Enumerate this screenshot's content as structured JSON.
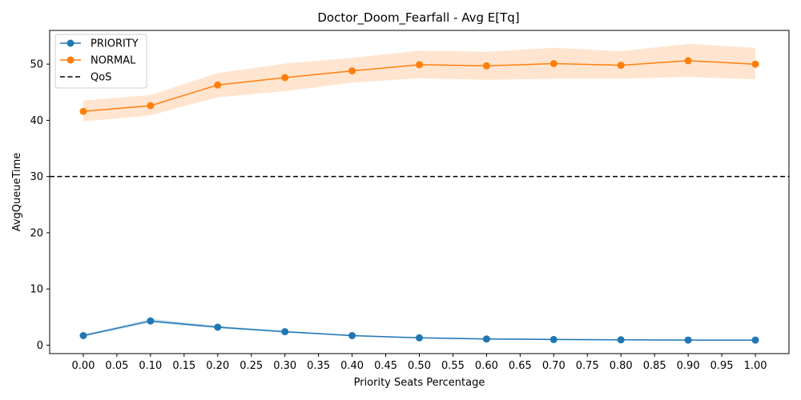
{
  "chart_data": {
    "type": "line",
    "title": "Doctor_Doom_Fearfall - Avg E[Tq]",
    "xlabel": "Priority Seats Percentage",
    "ylabel": "AvgQueueTime",
    "xlim": [
      -0.05,
      1.05
    ],
    "ylim": [
      -1.5,
      56
    ],
    "x": [
      0.0,
      0.1,
      0.2,
      0.3,
      0.4,
      0.5,
      0.6,
      0.7,
      0.8,
      0.9,
      1.0
    ],
    "x_ticks": [
      0.0,
      0.05,
      0.1,
      0.15,
      0.2,
      0.25,
      0.3,
      0.35,
      0.4,
      0.45,
      0.5,
      0.55,
      0.6,
      0.65,
      0.7,
      0.75,
      0.8,
      0.85,
      0.9,
      0.95,
      1.0
    ],
    "x_tick_labels": [
      "0.00",
      "0.05",
      "0.10",
      "0.15",
      "0.20",
      "0.25",
      "0.30",
      "0.35",
      "0.40",
      "0.45",
      "0.50",
      "0.55",
      "0.60",
      "0.65",
      "0.70",
      "0.75",
      "0.80",
      "0.85",
      "0.90",
      "0.95",
      "1.00"
    ],
    "y_ticks": [
      0,
      10,
      20,
      30,
      40,
      50
    ],
    "y_tick_labels": [
      "0",
      "10",
      "20",
      "30",
      "40",
      "50"
    ],
    "series": [
      {
        "name": "PRIORITY",
        "color": "#1f77b4",
        "values": [
          1.7,
          4.3,
          3.2,
          2.4,
          1.7,
          1.3,
          1.1,
          1.0,
          0.95,
          0.9,
          0.9
        ],
        "lower": [
          1.5,
          4.0,
          3.0,
          2.25,
          1.6,
          1.2,
          1.0,
          0.9,
          0.85,
          0.8,
          0.8
        ],
        "upper": [
          1.9,
          4.7,
          3.45,
          2.55,
          1.85,
          1.45,
          1.25,
          1.15,
          1.05,
          1.0,
          1.0
        ]
      },
      {
        "name": "NORMAL",
        "color": "#ff7f0e",
        "values": [
          41.6,
          42.6,
          46.3,
          47.6,
          48.8,
          49.9,
          49.7,
          50.1,
          49.8,
          50.6,
          50.0
        ],
        "lower": [
          39.8,
          40.9,
          44.1,
          45.2,
          46.7,
          47.5,
          47.2,
          47.4,
          47.4,
          47.7,
          47.3
        ],
        "upper": [
          43.5,
          44.5,
          48.4,
          50.1,
          51.1,
          52.4,
          52.2,
          52.9,
          52.3,
          53.6,
          52.9
        ]
      }
    ],
    "reference_line": {
      "name": "QoS",
      "y": 30,
      "color": "#000000",
      "style": "dashed"
    },
    "legend_position": "top-left",
    "grid": false
  }
}
